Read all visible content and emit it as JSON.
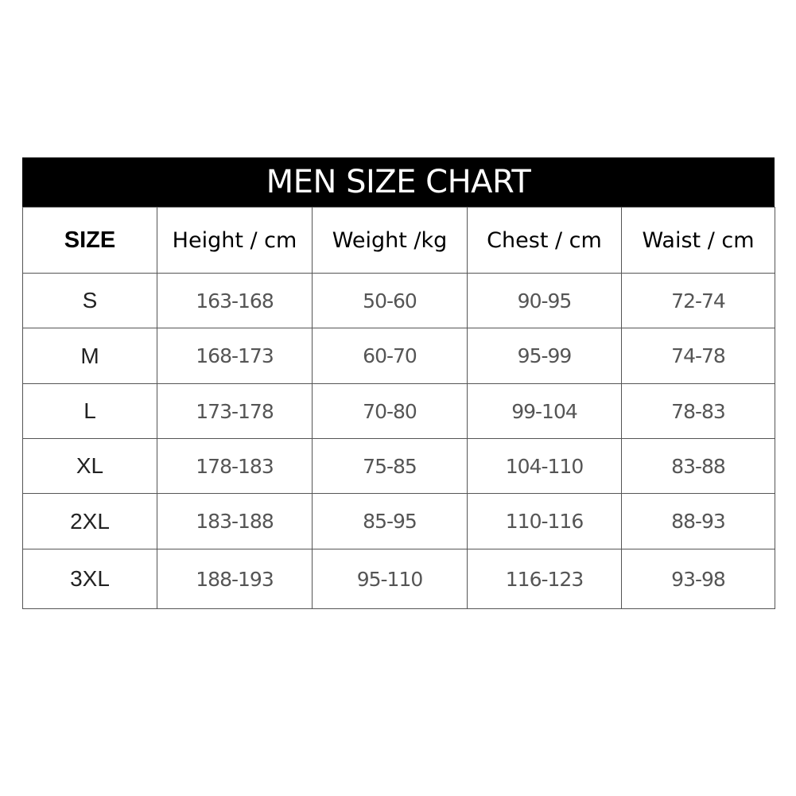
{
  "title": "MEN SIZE CHART",
  "columns": [
    "SIZE",
    "Height / cm",
    "Weight /kg",
    "Chest / cm",
    "Waist / cm"
  ],
  "rows": [
    [
      "S",
      "163-168",
      "50-60",
      "90-95",
      "72-74"
    ],
    [
      "M",
      "168-173",
      "60-70",
      "95-99",
      "74-78"
    ],
    [
      "L",
      "173-178",
      "70-80",
      "99-104",
      "78-83"
    ],
    [
      "XL",
      "178-183",
      "75-85",
      "104-110",
      "83-88"
    ],
    [
      "2XL",
      "183-188",
      "85-95",
      "110-116",
      "88-93"
    ],
    [
      "3XL",
      "188-193",
      "95-110",
      "116-123",
      "93-98"
    ]
  ]
}
